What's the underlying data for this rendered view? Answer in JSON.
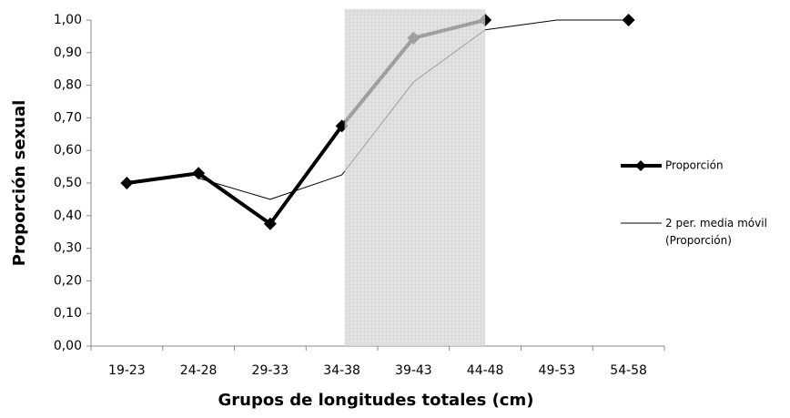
{
  "chart_data": {
    "type": "line",
    "x_label": "Grupos de longitudes totales (cm)",
    "y_label": "Proporción sexual",
    "categories": [
      "19-23",
      "24-28",
      "29-33",
      "34-38",
      "39-43",
      "44-48",
      "49-53",
      "54-58"
    ],
    "series": [
      {
        "name": "Proporción",
        "color": "#000000",
        "values": [
          0.5,
          0.53,
          0.375,
          0.675,
          0.945,
          1.0,
          null,
          1.0
        ]
      },
      {
        "name": "2 per. media móvil (Proporción)",
        "color": "#000000",
        "values": [
          null,
          0.515,
          0.45,
          0.525,
          0.81,
          0.97,
          1.0,
          1.0
        ]
      }
    ],
    "ylim": [
      0,
      1
    ],
    "yticks": [
      {
        "value": 0,
        "label": "0,00"
      },
      {
        "value": 0.1,
        "label": "0,10"
      },
      {
        "value": 0.2,
        "label": "0,20"
      },
      {
        "value": 0.3,
        "label": "0,30"
      },
      {
        "value": 0.4,
        "label": "0,40"
      },
      {
        "value": 0.5,
        "label": "0,50"
      },
      {
        "value": 0.6,
        "label": "0,60"
      },
      {
        "value": 0.7,
        "label": "0,70"
      },
      {
        "value": 0.8,
        "label": "0,80"
      },
      {
        "value": 0.9,
        "label": "0,90"
      },
      {
        "value": 1,
        "label": "1,00"
      }
    ],
    "grid": false,
    "legend": "right"
  }
}
